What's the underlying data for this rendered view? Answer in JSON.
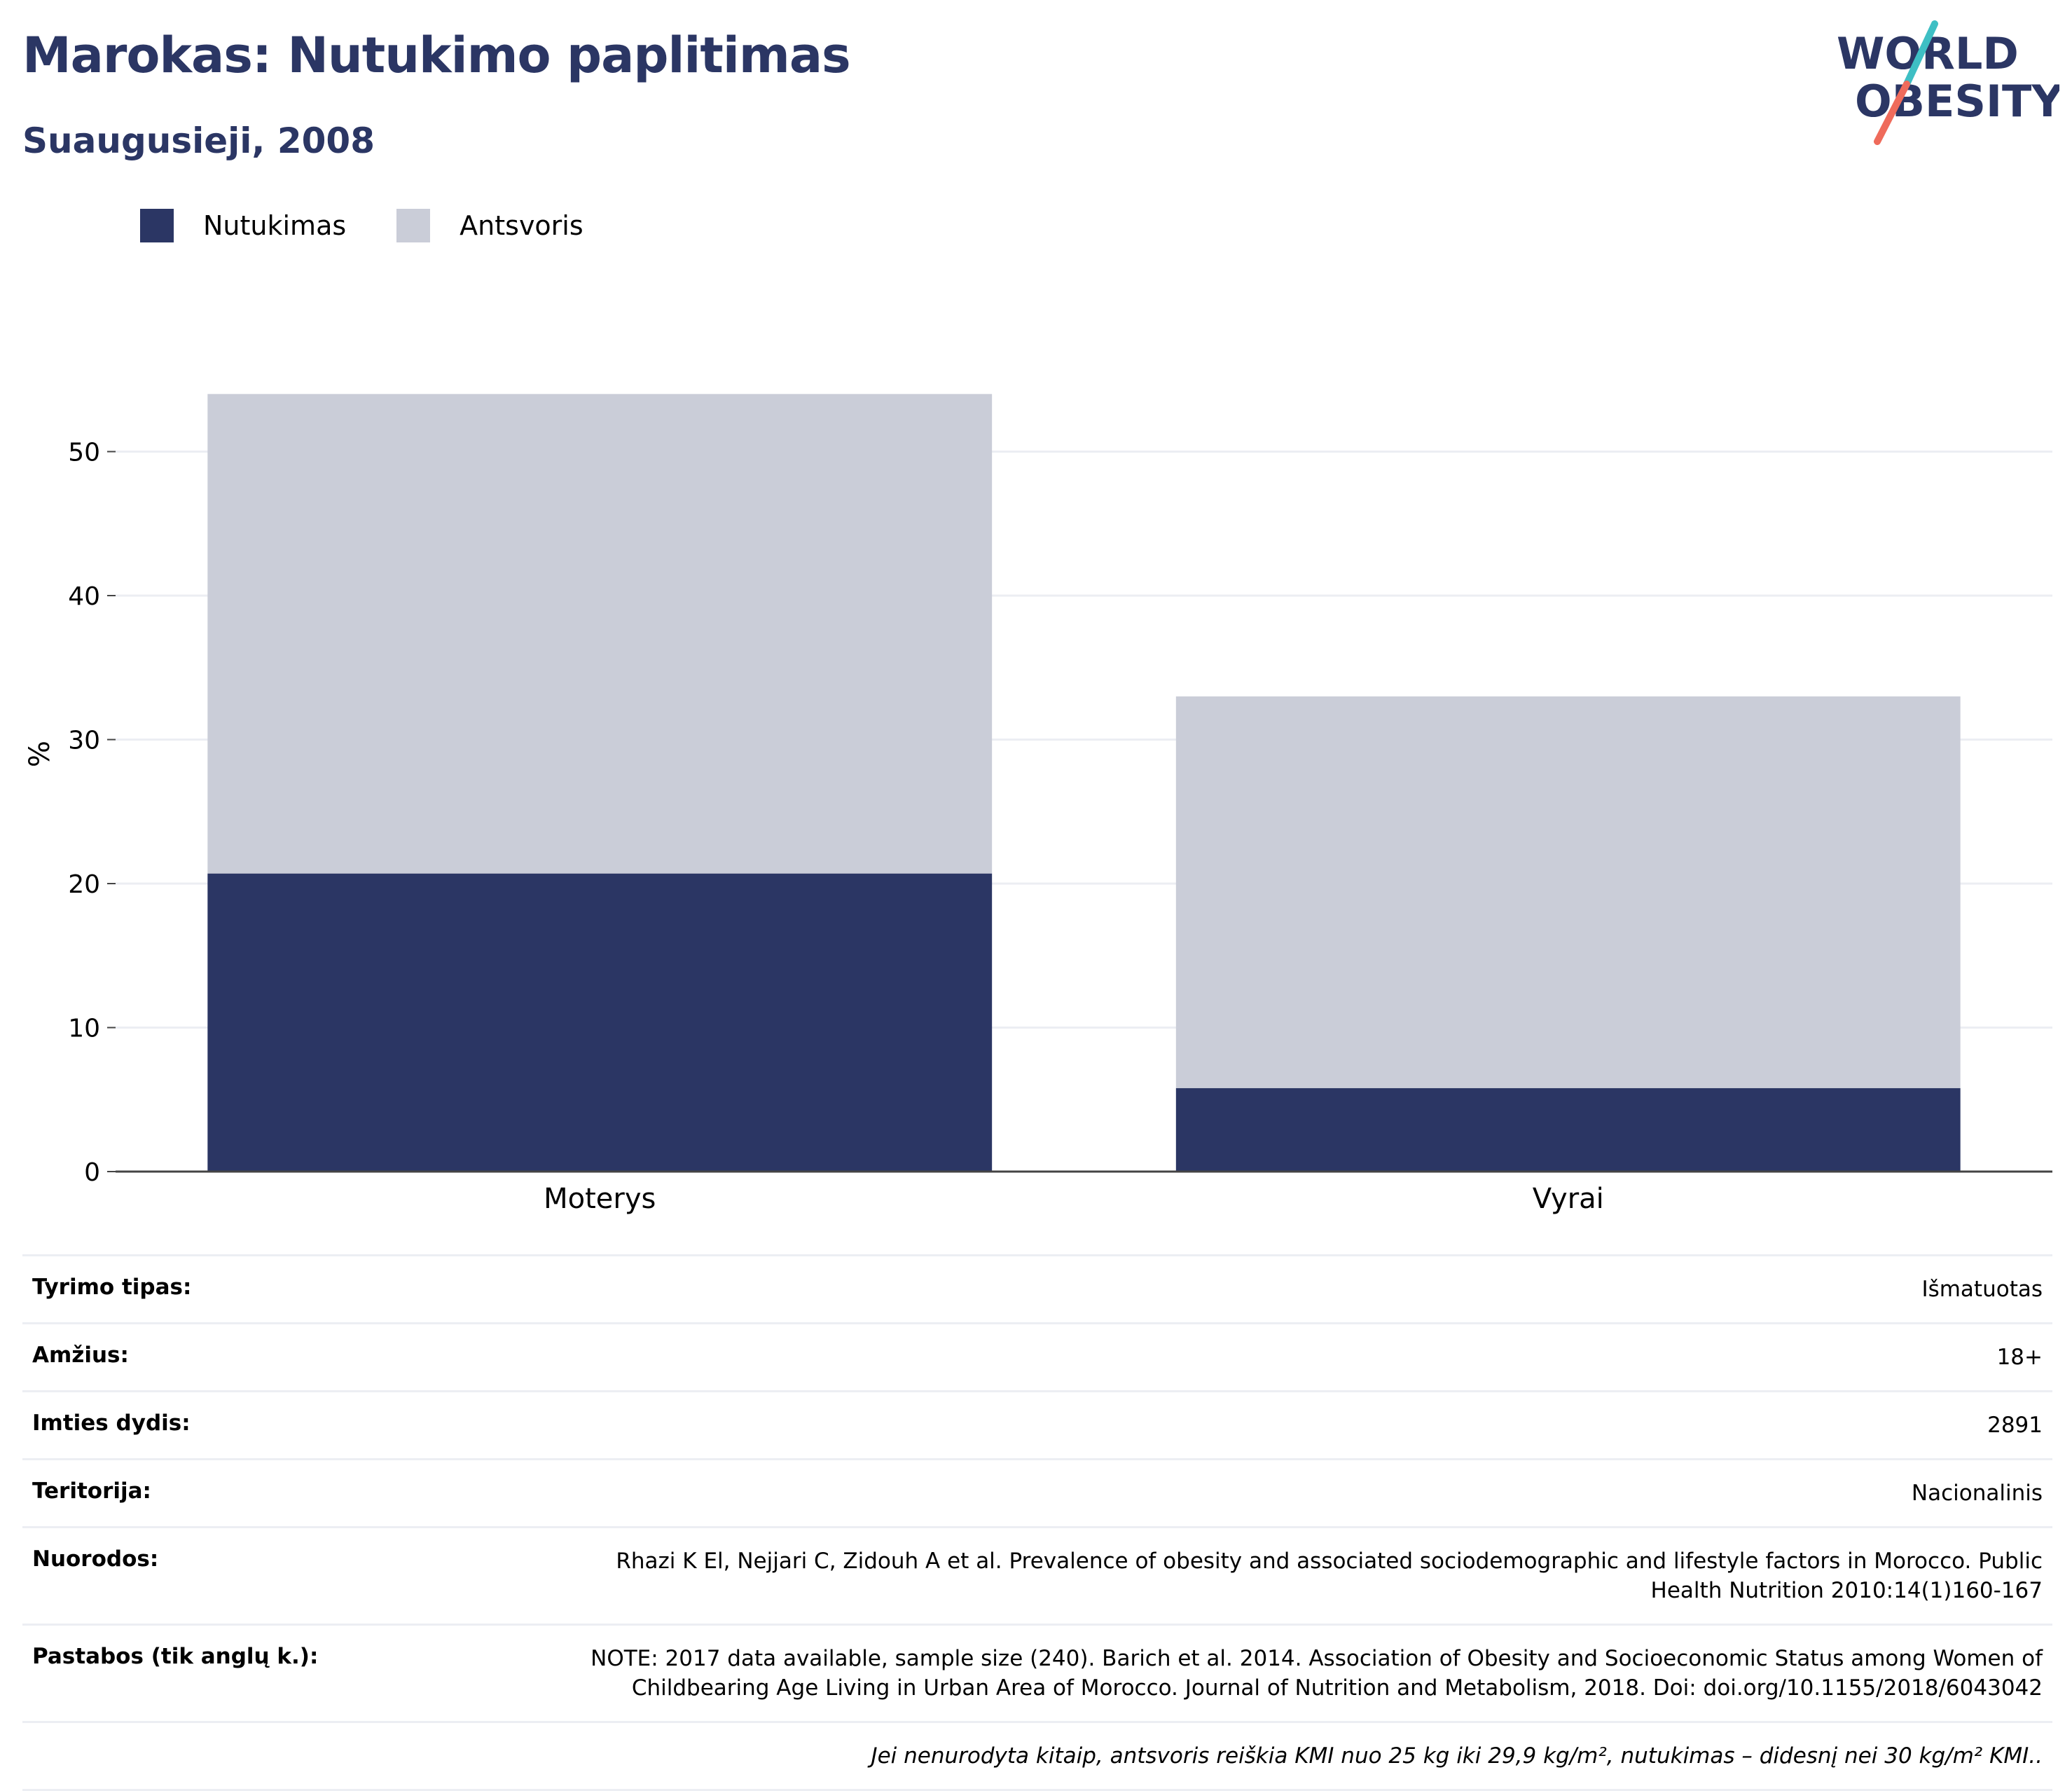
{
  "header": {
    "title": "Marokas: Nutukimo paplitimas",
    "subtitle": "Suaugusieji, 2008"
  },
  "logo": {
    "line1": "WORLD",
    "line2": "OBESITY",
    "slash_colors": [
      "#3ebfc4",
      "#ef6b5b"
    ],
    "text_color": "#2b3664"
  },
  "colors": {
    "obesity": "#2b3664",
    "overweight": "#cacdd8",
    "grid": "#eceef3",
    "axis": "#444444"
  },
  "chart_data": {
    "type": "bar",
    "stacked": true,
    "categories": [
      "Moterys",
      "Vyrai"
    ],
    "series": [
      {
        "name": "Nutukimas",
        "values": [
          20.7,
          5.8
        ]
      },
      {
        "name": "Antsvoris",
        "values": [
          33.3,
          27.2
        ]
      }
    ],
    "ylabel": "%",
    "ylim": [
      0,
      55
    ],
    "yticks": [
      0,
      10,
      20,
      30,
      40,
      50
    ],
    "grid": true,
    "legend_position": "top-left"
  },
  "info_rows": [
    {
      "label": "Tyrimo tipas:",
      "value": "Išmatuotas"
    },
    {
      "label": "Amžius:",
      "value": "18+"
    },
    {
      "label": "Imties dydis:",
      "value": "2891"
    },
    {
      "label": "Teritorija:",
      "value": "Nacionalinis"
    },
    {
      "label": "Nuorodos:",
      "value": "Rhazi K El, Nejjari C, Zidouh A et al. Prevalence of obesity and associated sociodemographic and lifestyle factors in Morocco. Public Health Nutrition 2010:14(1)160-167"
    },
    {
      "label": "Pastabos (tik anglų k.):",
      "value": "NOTE: 2017 data available, sample size (240). Barich et al. 2014. Association of Obesity and Socioeconomic Status among Women of Childbearing Age Living in Urban Area of Morocco. Journal of Nutrition and Metabolism, 2018. Doi: doi.org/10.1155/2018/6043042"
    }
  ],
  "footnote": "Jei nenurodyta kitaip, antsvoris reiškia KMI nuo 25 kg iki 29,9 kg/m², nutukimas – didesnį nei 30 kg/m² KMI.."
}
